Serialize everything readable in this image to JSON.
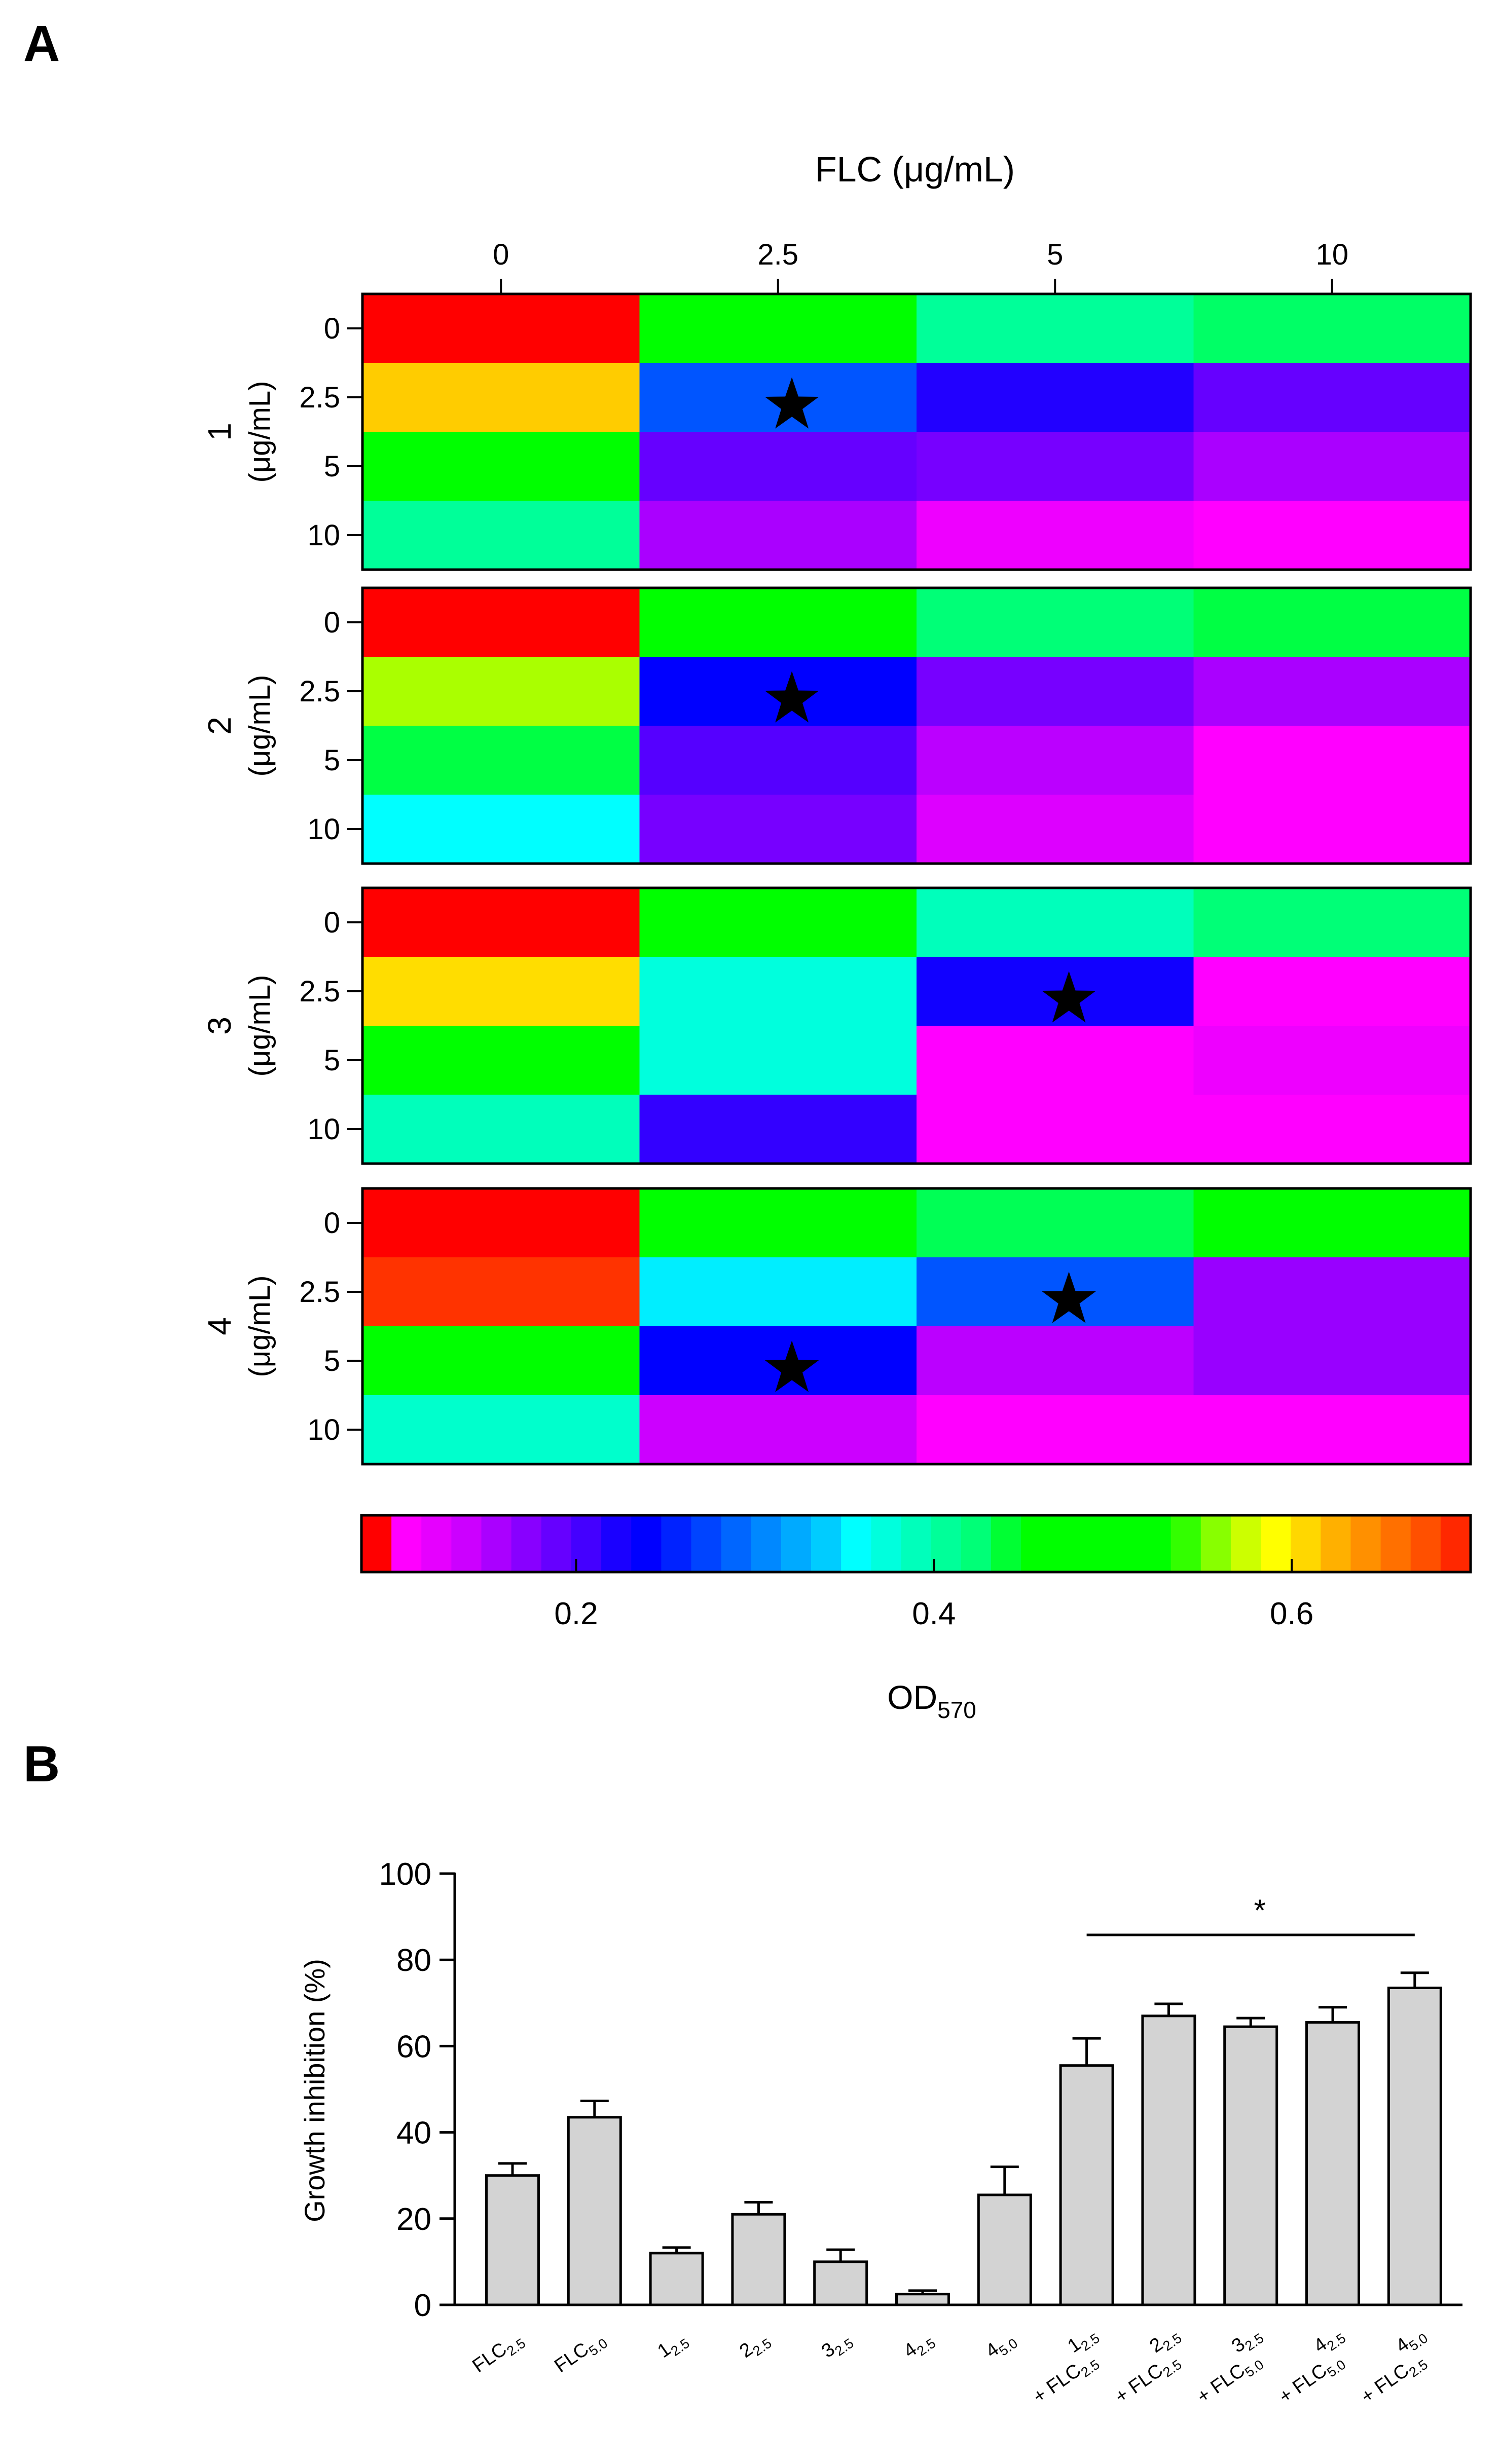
{
  "panel_labels": {
    "a": "A",
    "b": "B"
  },
  "chart_data": [
    {
      "type": "heatmap",
      "title": "FLC (μg/mL)",
      "columns": [
        "0",
        "2.5",
        "5",
        "10"
      ],
      "rows": [
        "0",
        "2.5",
        "5",
        "10"
      ],
      "colorbar": {
        "label": "OD",
        "label_sub": "570",
        "ticks": [
          0.2,
          0.4,
          0.6
        ],
        "range": [
          0.08,
          0.7
        ],
        "colors": [
          "#ff0000",
          "#ff00ff",
          "#e600ff",
          "#cc00ff",
          "#aa00ff",
          "#8800ff",
          "#6600ff",
          "#4400ff",
          "#1a00ff",
          "#0000ff",
          "#0022ff",
          "#0044ff",
          "#0066ff",
          "#0088ff",
          "#00aaff",
          "#00ccff",
          "#00ffff",
          "#00ffdd",
          "#00ffbb",
          "#00ff99",
          "#00ff77",
          "#00ff33",
          "#00ff00",
          "#00ff00",
          "#00ff00",
          "#00ff00",
          "#00ff00",
          "#33ff00",
          "#88ff00",
          "#ccff00",
          "#ffff00",
          "#ffd700",
          "#ffb000",
          "#ff9000",
          "#ff7000",
          "#ff5000",
          "#ff2800"
        ]
      },
      "blocks": [
        {
          "name": "1",
          "unit": "(μg/mL)",
          "cells": [
            [
              "#ff0000",
              "#00ff00",
              "#00ff99",
              "#00ff66"
            ],
            [
              "#ffcc00",
              "#0055ff",
              "#2200ff",
              "#6600ff"
            ],
            [
              "#00ff00",
              "#6600ff",
              "#7700ff",
              "#aa00ff"
            ],
            [
              "#00ff99",
              "#aa00ff",
              "#ee00ff",
              "#ff00ff"
            ]
          ],
          "stars": [
            [
              1,
              1
            ]
          ]
        },
        {
          "name": "2",
          "unit": "(μg/mL)",
          "cells": [
            [
              "#ff0000",
              "#00ff00",
              "#00ff77",
              "#00ff44"
            ],
            [
              "#aaff00",
              "#0000ff",
              "#7700ff",
              "#aa00ff"
            ],
            [
              "#00ff44",
              "#5500ff",
              "#bb00ff",
              "#ff00ff"
            ],
            [
              "#00ffff",
              "#7700ff",
              "#dd00ff",
              "#ff00ff"
            ]
          ],
          "stars": [
            [
              1,
              1
            ]
          ]
        },
        {
          "name": "3",
          "unit": "(μg/mL)",
          "cells": [
            [
              "#ff0000",
              "#00ff00",
              "#00ffbb",
              "#00ff77"
            ],
            [
              "#ffdd00",
              "#00ffdd",
              "#1100ff",
              "#ff00ff"
            ],
            [
              "#00ff00",
              "#00ffdd",
              "#ff00ff",
              "#ee00ff"
            ],
            [
              "#00ffbb",
              "#3300ff",
              "#ff00ff",
              "#ff00ff"
            ]
          ],
          "stars": [
            [
              1,
              2
            ]
          ]
        },
        {
          "name": "4",
          "unit": "(μg/mL)",
          "cells": [
            [
              "#ff0000",
              "#00ff00",
              "#00ff55",
              "#00ff00"
            ],
            [
              "#ff3300",
              "#00eeff",
              "#0055ff",
              "#9900ff"
            ],
            [
              "#00ff00",
              "#0000ff",
              "#bb00ff",
              "#9900ff"
            ],
            [
              "#00ffcc",
              "#cc00ff",
              "#ff00ff",
              "#ff00ff"
            ]
          ],
          "stars": [
            [
              1,
              2
            ],
            [
              2,
              1
            ]
          ]
        }
      ]
    },
    {
      "type": "bar",
      "ylabel": "Growth inhibition (%)",
      "ylim": [
        0,
        100
      ],
      "yticks": [
        0,
        20,
        40,
        60,
        80,
        100
      ],
      "categories": [
        {
          "main": "FLC",
          "sub": "2.5",
          "line2": ""
        },
        {
          "main": "FLC",
          "sub": "5.0",
          "line2": ""
        },
        {
          "main": "1",
          "sub": "2.5",
          "line2": ""
        },
        {
          "main": "2",
          "sub": "2.5",
          "line2": ""
        },
        {
          "main": "3",
          "sub": "2.5",
          "line2": ""
        },
        {
          "main": "4",
          "sub": "2.5",
          "line2": ""
        },
        {
          "main": "4",
          "sub": "5.0",
          "line2": ""
        },
        {
          "main": "1",
          "sub": "2.5",
          "line2": "+ FLC",
          "line2_sub": "2.5"
        },
        {
          "main": "2",
          "sub": "2.5",
          "line2": "+ FLC",
          "line2_sub": "2.5"
        },
        {
          "main": "3",
          "sub": "2.5",
          "line2": "+ FLC",
          "line2_sub": "5.0"
        },
        {
          "main": "4",
          "sub": "2.5",
          "line2": "+ FLC",
          "line2_sub": "5.0"
        },
        {
          "main": "4",
          "sub": "5.0",
          "line2": "+ FLC",
          "line2_sub": "2.5"
        }
      ],
      "values": [
        30,
        43.5,
        12,
        21,
        10,
        2.5,
        25.5,
        55.5,
        67,
        64.5,
        65.5,
        73.5
      ],
      "errors": [
        2.8,
        3.8,
        1.3,
        2.8,
        2.8,
        0.8,
        6.5,
        6.3,
        2.8,
        2.0,
        3.5,
        3.5
      ],
      "bar_color": "#d3d3d3",
      "significance": {
        "label": "*",
        "from_index": 7,
        "to_index": 11
      }
    }
  ]
}
